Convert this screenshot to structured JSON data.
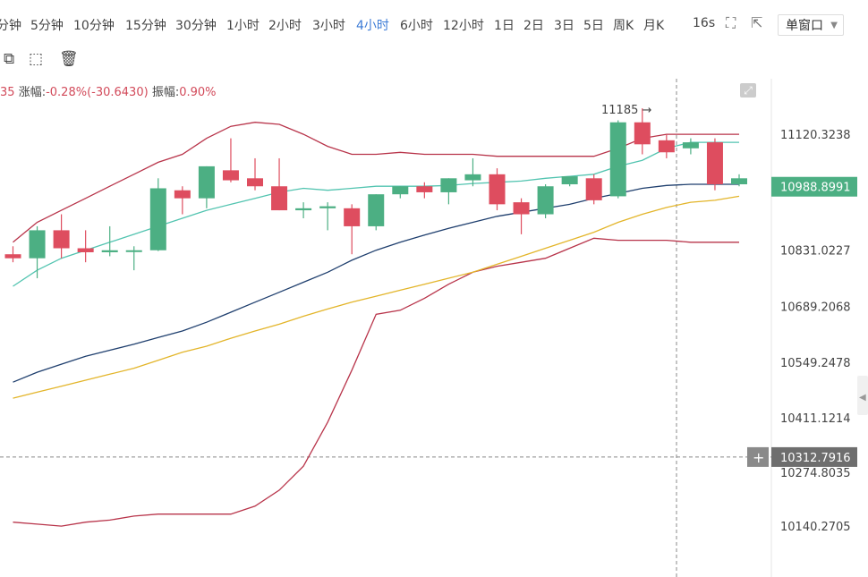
{
  "toolbar": {
    "timeframes": [
      "分钟",
      "5分钟",
      "10分钟",
      "15分钟",
      "30分钟",
      "1小时",
      "2小时",
      "3小时",
      "4小时",
      "6小时",
      "12小时",
      "1日",
      "2日",
      "3日",
      "5日",
      "周K",
      "月K"
    ],
    "active_timeframe": "4小时",
    "refresh": "16s",
    "window_mode": "单窗口"
  },
  "info_bar": {
    "prefix": "35",
    "change_label": "涨幅:",
    "change_value": "-0.28%(-30.6430)",
    "amplitude_label": "振幅:",
    "amplitude_value": "0.90%"
  },
  "colors": {
    "up": "#4caf83",
    "down": "#de4d5f",
    "boll_band": "#b8344a",
    "ma_cyan": "#52c4b0",
    "ma_navy": "#1f3f6e",
    "ma_yellow": "#e3b52a",
    "accent": "#3c7bd6"
  },
  "chart_data": {
    "type": "candlestick",
    "y_axis_ticks": [
      11120.3238,
      10831.0227,
      10689.2068,
      10549.2478,
      10411.1214,
      10274.8035,
      10140.2705
    ],
    "current_price": 10988.8991,
    "crosshair_price": 10312.7916,
    "high_marker": "11185",
    "candles": [
      {
        "o": 10820,
        "h": 10840,
        "l": 10800,
        "c": 10810
      },
      {
        "o": 10810,
        "h": 10890,
        "l": 10760,
        "c": 10880
      },
      {
        "o": 10880,
        "h": 10920,
        "l": 10810,
        "c": 10835
      },
      {
        "o": 10835,
        "h": 10880,
        "l": 10800,
        "c": 10825
      },
      {
        "o": 10825,
        "h": 10890,
        "l": 10815,
        "c": 10830
      },
      {
        "o": 10827,
        "h": 10840,
        "l": 10780,
        "c": 10830
      },
      {
        "o": 10830,
        "h": 11010,
        "l": 10828,
        "c": 10985
      },
      {
        "o": 10980,
        "h": 10990,
        "l": 10920,
        "c": 10960
      },
      {
        "o": 10960,
        "h": 11040,
        "l": 10935,
        "c": 11040
      },
      {
        "o": 11030,
        "h": 11110,
        "l": 11000,
        "c": 11005
      },
      {
        "o": 11010,
        "h": 11060,
        "l": 10980,
        "c": 10990
      },
      {
        "o": 10990,
        "h": 11060,
        "l": 10930,
        "c": 10930
      },
      {
        "o": 10930,
        "h": 10950,
        "l": 10910,
        "c": 10935
      },
      {
        "o": 10935,
        "h": 10950,
        "l": 10880,
        "c": 10940
      },
      {
        "o": 10935,
        "h": 10945,
        "l": 10820,
        "c": 10890
      },
      {
        "o": 10890,
        "h": 10970,
        "l": 10880,
        "c": 10970
      },
      {
        "o": 10970,
        "h": 10990,
        "l": 10960,
        "c": 10990
      },
      {
        "o": 10990,
        "h": 11000,
        "l": 10960,
        "c": 10975
      },
      {
        "o": 10975,
        "h": 11010,
        "l": 10945,
        "c": 11010
      },
      {
        "o": 11005,
        "h": 11060,
        "l": 10990,
        "c": 11020
      },
      {
        "o": 11020,
        "h": 11035,
        "l": 10930,
        "c": 10945
      },
      {
        "o": 10950,
        "h": 10960,
        "l": 10870,
        "c": 10920
      },
      {
        "o": 10920,
        "h": 10995,
        "l": 10910,
        "c": 10990
      },
      {
        "o": 10995,
        "h": 11015,
        "l": 10990,
        "c": 11015
      },
      {
        "o": 11010,
        "h": 11020,
        "l": 10945,
        "c": 10955
      },
      {
        "o": 10965,
        "h": 11155,
        "l": 10960,
        "c": 11150
      },
      {
        "o": 11150,
        "h": 11185,
        "l": 11070,
        "c": 11095
      },
      {
        "o": 11105,
        "h": 11120,
        "l": 11060,
        "c": 11075
      },
      {
        "o": 11085,
        "h": 11110,
        "l": 11070,
        "c": 11100
      },
      {
        "o": 11100,
        "h": 11110,
        "l": 10980,
        "c": 10995
      },
      {
        "o": 10995,
        "h": 11020,
        "l": 10990,
        "c": 11010
      }
    ],
    "indicators": {
      "boll_upper": [
        10850,
        10900,
        10930,
        10960,
        10990,
        11020,
        11050,
        11070,
        11110,
        11140,
        11150,
        11145,
        11120,
        11090,
        11070,
        11070,
        11075,
        11070,
        11070,
        11070,
        11065,
        11065,
        11065,
        11065,
        11065,
        11085,
        11110,
        11120,
        11120,
        11120,
        11120
      ],
      "boll_lower": [
        10150,
        10145,
        10140,
        10150,
        10155,
        10165,
        10170,
        10170,
        10170,
        10170,
        10190,
        10230,
        10290,
        10400,
        10530,
        10670,
        10680,
        10710,
        10745,
        10775,
        10790,
        10800,
        10810,
        10835,
        10860,
        10855,
        10855,
        10855,
        10850,
        10850,
        10850
      ],
      "ma_cyan": [
        10740,
        10780,
        10810,
        10830,
        10850,
        10870,
        10890,
        10910,
        10930,
        10945,
        10960,
        10975,
        10985,
        10980,
        10985,
        10990,
        10990,
        10990,
        10992,
        10997,
        11000,
        11003,
        11010,
        11015,
        11020,
        11040,
        11055,
        11085,
        11100,
        11100,
        11100
      ],
      "ma_navy": [
        10500,
        10525,
        10545,
        10565,
        10580,
        10595,
        10612,
        10628,
        10650,
        10675,
        10700,
        10725,
        10750,
        10775,
        10805,
        10830,
        10850,
        10868,
        10885,
        10900,
        10915,
        10925,
        10935,
        10945,
        10960,
        10972,
        10985,
        10992,
        10995,
        10995,
        10995
      ],
      "ma_yellow": [
        10460,
        10475,
        10490,
        10505,
        10520,
        10535,
        10555,
        10575,
        10590,
        10610,
        10628,
        10645,
        10665,
        10683,
        10700,
        10715,
        10730,
        10745,
        10760,
        10775,
        10795,
        10815,
        10835,
        10855,
        10875,
        10900,
        10920,
        10937,
        10950,
        10955,
        10965
      ]
    }
  }
}
